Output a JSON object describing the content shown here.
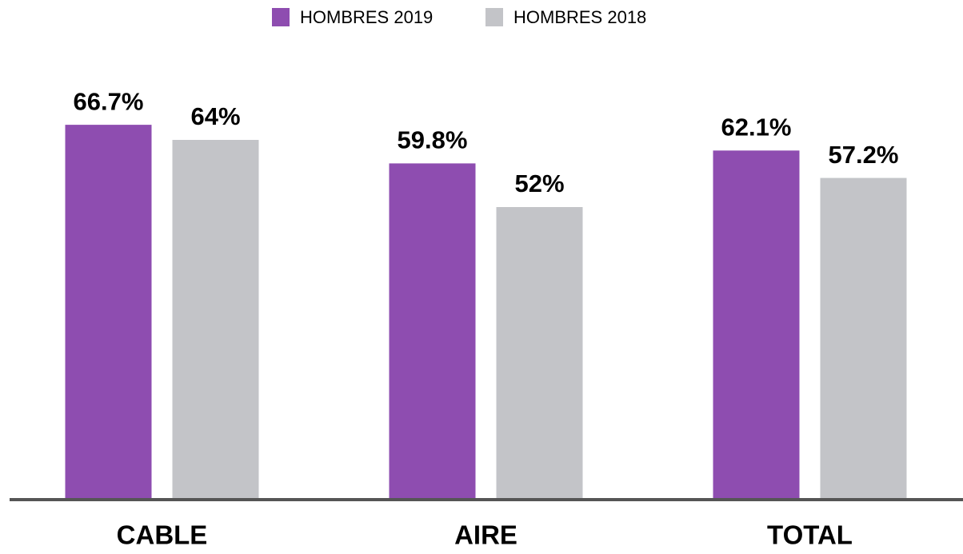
{
  "chart_data": {
    "type": "bar",
    "categories": [
      "CABLE",
      "AIRE",
      "TOTAL"
    ],
    "series": [
      {
        "name": "HOMBRES 2019",
        "color": "#8e4db0",
        "values": [
          66.7,
          59.8,
          62.1
        ],
        "value_labels": [
          "66.7%",
          "59.8%",
          "62.1%"
        ]
      },
      {
        "name": "HOMBRES 2018",
        "color": "#c3c4c8",
        "values": [
          64,
          52,
          57.2
        ],
        "value_labels": [
          "64%",
          "52%",
          "57.2%"
        ]
      }
    ],
    "ylim": [
      0,
      89
    ],
    "legend": "top"
  }
}
